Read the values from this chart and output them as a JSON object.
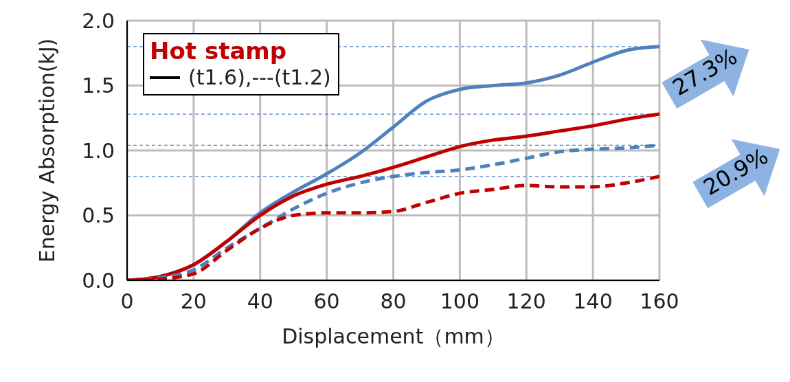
{
  "chart_data": {
    "type": "line",
    "xlabel": "Displacement（mm）",
    "ylabel": "Energy Absorption(kJ)",
    "legend_title": "(t1.6),---(t1.2)",
    "legend": "top left",
    "grid": true,
    "x": [
      0,
      10,
      20,
      30,
      40,
      50,
      60,
      70,
      80,
      90,
      100,
      110,
      120,
      130,
      140,
      150,
      160
    ],
    "xlim": [
      0,
      160
    ],
    "xticks": [
      0,
      20,
      40,
      60,
      80,
      100,
      120,
      140,
      160
    ],
    "ylim": [
      0,
      2.0
    ],
    "yticks": [
      {
        "value": 0,
        "label": "0.0"
      },
      {
        "value": 0.5,
        "label": "0.5"
      },
      {
        "value": 1,
        "label": "1.0"
      },
      {
        "value": 1.5,
        "label": "1.5"
      },
      {
        "value": 2,
        "label": "2.0"
      }
    ],
    "series": [
      {
        "color": "#4f81bd",
        "line_style": "solid",
        "values": [
          0,
          0.03,
          0.12,
          0.3,
          0.52,
          0.68,
          0.82,
          0.98,
          1.18,
          1.38,
          1.47,
          1.5,
          1.52,
          1.58,
          1.68,
          1.77,
          1.8
        ]
      },
      {
        "name": "Hot stamp",
        "color": "#c00000",
        "line_style": "solid",
        "values": [
          0,
          0.03,
          0.12,
          0.3,
          0.5,
          0.65,
          0.74,
          0.8,
          0.87,
          0.95,
          1.03,
          1.08,
          1.11,
          1.15,
          1.19,
          1.24,
          1.28
        ]
      },
      {
        "color": "#4f81bd",
        "line_style": "dashed",
        "values": [
          0,
          0.02,
          0.08,
          0.25,
          0.4,
          0.55,
          0.67,
          0.75,
          0.8,
          0.83,
          0.85,
          0.89,
          0.94,
          0.99,
          1.01,
          1.02,
          1.04
        ]
      },
      {
        "color": "#c00000",
        "line_style": "dashed",
        "values": [
          0,
          0.01,
          0.05,
          0.23,
          0.4,
          0.5,
          0.52,
          0.52,
          0.53,
          0.6,
          0.67,
          0.7,
          0.73,
          0.72,
          0.72,
          0.75,
          0.8
        ]
      }
    ],
    "ref_lines": [
      {
        "axis": "y",
        "value": 1.8,
        "color": "#4f81bd",
        "line_style": "dashed"
      },
      {
        "axis": "y",
        "value": 1.28,
        "color": "#4f81bd",
        "line_style": "dashed"
      },
      {
        "axis": "y",
        "value": 1.04,
        "color": "#4f81bd",
        "line_style": "dashed"
      },
      {
        "axis": "y",
        "value": 0.8,
        "color": "#4f81bd",
        "line_style": "dashed"
      }
    ],
    "annotations": [
      "27.3%",
      "20.9%"
    ]
  }
}
